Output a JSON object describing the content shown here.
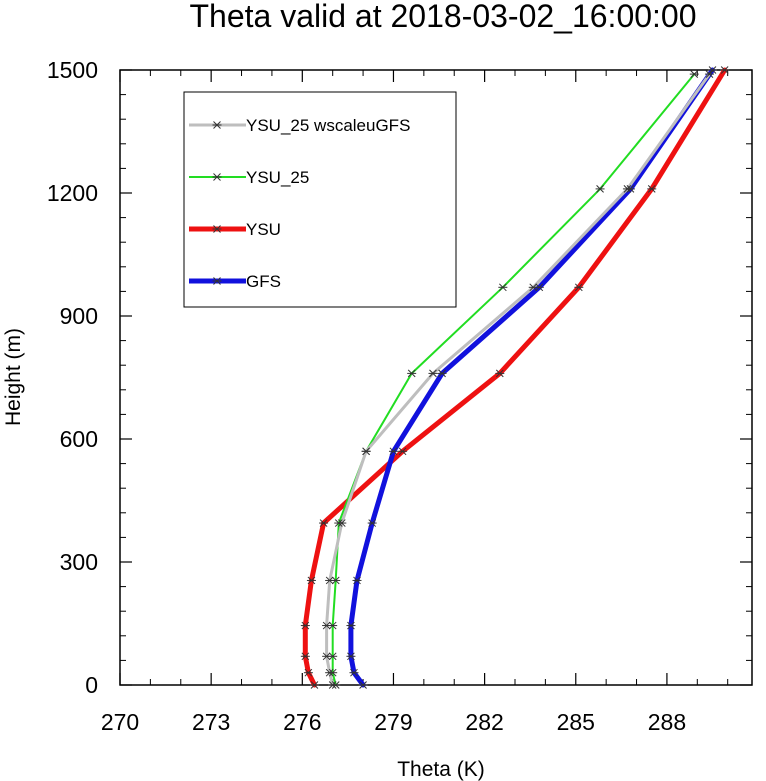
{
  "chart_data": {
    "type": "line",
    "title": "Theta valid at 2018-03-02_16:00:00",
    "xlabel": "Theta (K)",
    "ylabel": "Height (m)",
    "xlim": [
      270,
      290.8
    ],
    "ylim": [
      0,
      1500
    ],
    "xticks": [
      270,
      273,
      276,
      279,
      282,
      285,
      288
    ],
    "xtick_labels": [
      "270",
      "273",
      "276",
      "279",
      "282",
      "285",
      "288"
    ],
    "yticks": [
      0,
      300,
      600,
      900,
      1200,
      1500
    ],
    "ytick_labels": [
      "0",
      "300",
      "600",
      "900",
      "1200",
      "1500"
    ],
    "legend_position": "top-left",
    "marker": "asterisk",
    "series": [
      {
        "name": "YSU_25 wscaleuGFS",
        "color": "#bebebe",
        "width": 3,
        "points": [
          [
            277.0,
            0
          ],
          [
            276.9,
            30
          ],
          [
            276.8,
            70
          ],
          [
            276.8,
            145
          ],
          [
            276.9,
            255
          ],
          [
            277.3,
            395
          ],
          [
            278.1,
            570
          ],
          [
            280.3,
            760
          ],
          [
            283.6,
            970
          ],
          [
            286.7,
            1210
          ],
          [
            289.4,
            1490
          ]
        ]
      },
      {
        "name": "YSU_25",
        "color": "#22dd22",
        "width": 2,
        "points": [
          [
            277.1,
            0
          ],
          [
            277.0,
            30
          ],
          [
            277.0,
            70
          ],
          [
            277.0,
            145
          ],
          [
            277.1,
            255
          ],
          [
            277.2,
            395
          ],
          [
            278.1,
            570
          ],
          [
            279.6,
            760
          ],
          [
            282.6,
            970
          ],
          [
            285.8,
            1210
          ],
          [
            288.9,
            1490
          ]
        ]
      },
      {
        "name": "YSU",
        "color": "#ee1111",
        "width": 5,
        "points": [
          [
            276.4,
            0
          ],
          [
            276.2,
            30
          ],
          [
            276.1,
            70
          ],
          [
            276.1,
            145
          ],
          [
            276.3,
            255
          ],
          [
            276.7,
            395
          ],
          [
            279.3,
            570
          ],
          [
            282.5,
            760
          ],
          [
            285.1,
            970
          ],
          [
            287.5,
            1210
          ],
          [
            289.9,
            1500
          ]
        ]
      },
      {
        "name": "GFS",
        "color": "#1111dd",
        "width": 5,
        "points": [
          [
            278.0,
            0
          ],
          [
            277.7,
            30
          ],
          [
            277.6,
            70
          ],
          [
            277.6,
            145
          ],
          [
            277.8,
            255
          ],
          [
            278.3,
            395
          ],
          [
            279.0,
            570
          ],
          [
            280.6,
            760
          ],
          [
            283.8,
            970
          ],
          [
            286.8,
            1210
          ],
          [
            289.5,
            1500
          ]
        ]
      }
    ]
  }
}
